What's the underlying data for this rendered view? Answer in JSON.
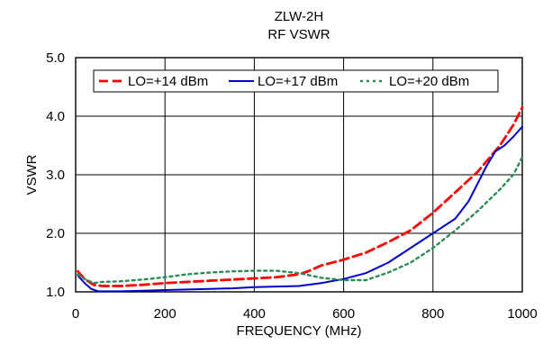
{
  "chart_data": {
    "type": "line",
    "title": "ZLW-2H",
    "subtitle": "RF VSWR",
    "xlabel": "FREQUENCY (MHz)",
    "ylabel": "VSWR",
    "xlim": [
      0,
      1000
    ],
    "ylim": [
      1.0,
      5.0
    ],
    "xticks": [
      0,
      200,
      400,
      600,
      800,
      1000
    ],
    "yticks": [
      1.0,
      2.0,
      3.0,
      4.0,
      5.0
    ],
    "xtick_labels": [
      "0",
      "200",
      "400",
      "600",
      "800",
      "1000"
    ],
    "ytick_labels": [
      "1.0",
      "2.0",
      "3.0",
      "4.0",
      "5.0"
    ],
    "grid": true,
    "legend_position": "top",
    "series": [
      {
        "name": "LO=+14 dBm",
        "color": "#ff0000",
        "style": "dashed",
        "points": [
          [
            5,
            1.35
          ],
          [
            20,
            1.22
          ],
          [
            40,
            1.12
          ],
          [
            60,
            1.1
          ],
          [
            100,
            1.1
          ],
          [
            150,
            1.12
          ],
          [
            200,
            1.15
          ],
          [
            250,
            1.17
          ],
          [
            300,
            1.19
          ],
          [
            350,
            1.21
          ],
          [
            400,
            1.23
          ],
          [
            450,
            1.25
          ],
          [
            500,
            1.3
          ],
          [
            520,
            1.35
          ],
          [
            550,
            1.45
          ],
          [
            600,
            1.55
          ],
          [
            650,
            1.67
          ],
          [
            700,
            1.85
          ],
          [
            750,
            2.05
          ],
          [
            800,
            2.35
          ],
          [
            850,
            2.7
          ],
          [
            900,
            3.05
          ],
          [
            950,
            3.5
          ],
          [
            980,
            3.85
          ],
          [
            1000,
            4.15
          ]
        ]
      },
      {
        "name": "LO=+17 dBm",
        "color": "#0000cc",
        "style": "solid",
        "points": [
          [
            5,
            1.28
          ],
          [
            20,
            1.15
          ],
          [
            35,
            1.05
          ],
          [
            50,
            1.01
          ],
          [
            100,
            1.01
          ],
          [
            150,
            1.02
          ],
          [
            200,
            1.03
          ],
          [
            250,
            1.04
          ],
          [
            300,
            1.05
          ],
          [
            350,
            1.06
          ],
          [
            400,
            1.08
          ],
          [
            450,
            1.09
          ],
          [
            500,
            1.1
          ],
          [
            550,
            1.15
          ],
          [
            600,
            1.22
          ],
          [
            650,
            1.32
          ],
          [
            700,
            1.5
          ],
          [
            750,
            1.75
          ],
          [
            800,
            2.0
          ],
          [
            850,
            2.25
          ],
          [
            880,
            2.55
          ],
          [
            900,
            2.85
          ],
          [
            920,
            3.15
          ],
          [
            940,
            3.4
          ],
          [
            960,
            3.5
          ],
          [
            980,
            3.65
          ],
          [
            1000,
            3.82
          ]
        ]
      },
      {
        "name": "LO=+20 dBm",
        "color": "#2e8b57",
        "style": "dotted",
        "points": [
          [
            5,
            1.3
          ],
          [
            20,
            1.22
          ],
          [
            40,
            1.15
          ],
          [
            60,
            1.17
          ],
          [
            100,
            1.18
          ],
          [
            150,
            1.21
          ],
          [
            200,
            1.25
          ],
          [
            250,
            1.3
          ],
          [
            300,
            1.33
          ],
          [
            350,
            1.35
          ],
          [
            400,
            1.36
          ],
          [
            450,
            1.36
          ],
          [
            500,
            1.32
          ],
          [
            550,
            1.24
          ],
          [
            600,
            1.2
          ],
          [
            650,
            1.2
          ],
          [
            700,
            1.33
          ],
          [
            750,
            1.5
          ],
          [
            800,
            1.75
          ],
          [
            850,
            2.05
          ],
          [
            900,
            2.38
          ],
          [
            950,
            2.75
          ],
          [
            980,
            3.0
          ],
          [
            1000,
            3.3
          ]
        ]
      }
    ]
  }
}
